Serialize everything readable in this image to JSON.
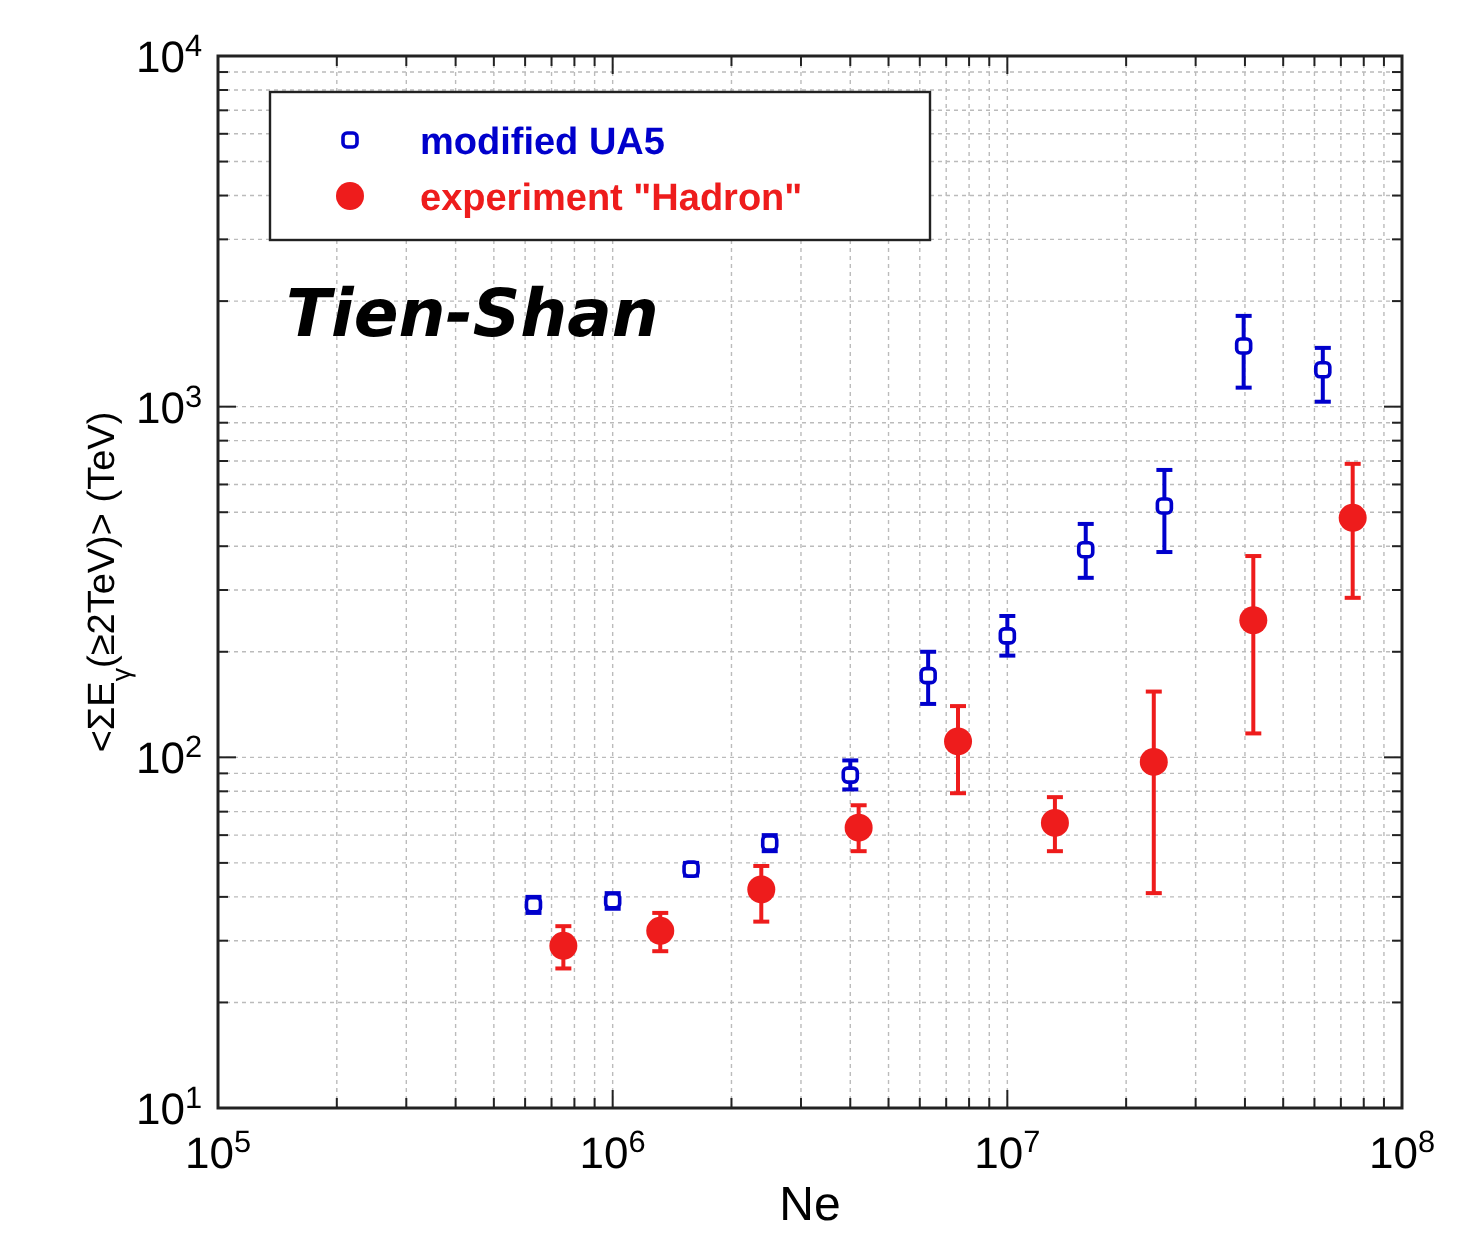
{
  "chart_data": {
    "type": "scatter",
    "xlabel": "Ne",
    "ylabel": "<ΣE$_{γ}$(≥2TeV)>  (TeV)",
    "log": "xy",
    "grid": true,
    "legend": "top left",
    "annotations": [
      "Tien-Shan"
    ],
    "xlim": [
      100000,
      100000000
    ],
    "ylim": [
      10,
      10000
    ],
    "xticks": [
      {
        "value": 100000,
        "label": "10$^{5}$"
      },
      {
        "value": 1000000,
        "label": "10$^{6}$"
      },
      {
        "value": 10000000,
        "label": "10$^{7}$"
      },
      {
        "value": 100000000,
        "label": "10$^{8}$"
      }
    ],
    "yticks": [
      {
        "value": 10,
        "label": "10$^{1}$"
      },
      {
        "value": 100,
        "label": "10$^{2}$"
      },
      {
        "value": 1000,
        "label": "10$^{3}$"
      },
      {
        "value": 10000,
        "label": "10$^{4}$"
      }
    ],
    "series": [
      {
        "name": "modified UA5",
        "color": "#0000cc",
        "marker": "square",
        "x": [
          630000,
          1000000,
          1580000,
          2500000,
          4000000,
          6300000,
          10000000,
          15800000,
          25000000,
          39700000,
          63000000
        ],
        "values": [
          38,
          39,
          48,
          57,
          89,
          171,
          222,
          391,
          521,
          1490,
          1274
        ],
        "errors": [
          [
            36,
            40
          ],
          [
            37,
            41
          ],
          [
            46,
            50
          ],
          [
            54,
            60
          ],
          [
            81,
            98
          ],
          [
            142,
            200
          ],
          [
            195,
            253
          ],
          [
            325,
            463
          ],
          [
            385,
            660
          ],
          [
            1133,
            1815
          ],
          [
            1033,
            1471
          ]
        ]
      },
      {
        "name": "experiment \"Hadron\"",
        "color": "#ee1c1c",
        "marker": "circle",
        "x": [
          750000,
          1320000,
          2380000,
          4200000,
          7500000,
          13200000,
          23500000,
          42000000,
          75000000
        ],
        "values": [
          29,
          32,
          42,
          63,
          111,
          65,
          97,
          246,
          482
        ],
        "errors": [
          [
            25,
            33
          ],
          [
            28,
            36
          ],
          [
            34,
            49
          ],
          [
            54,
            73
          ],
          [
            79,
            140
          ],
          [
            54,
            77
          ],
          [
            41,
            154
          ],
          [
            117,
            375
          ],
          [
            285,
            687
          ]
        ]
      }
    ]
  }
}
